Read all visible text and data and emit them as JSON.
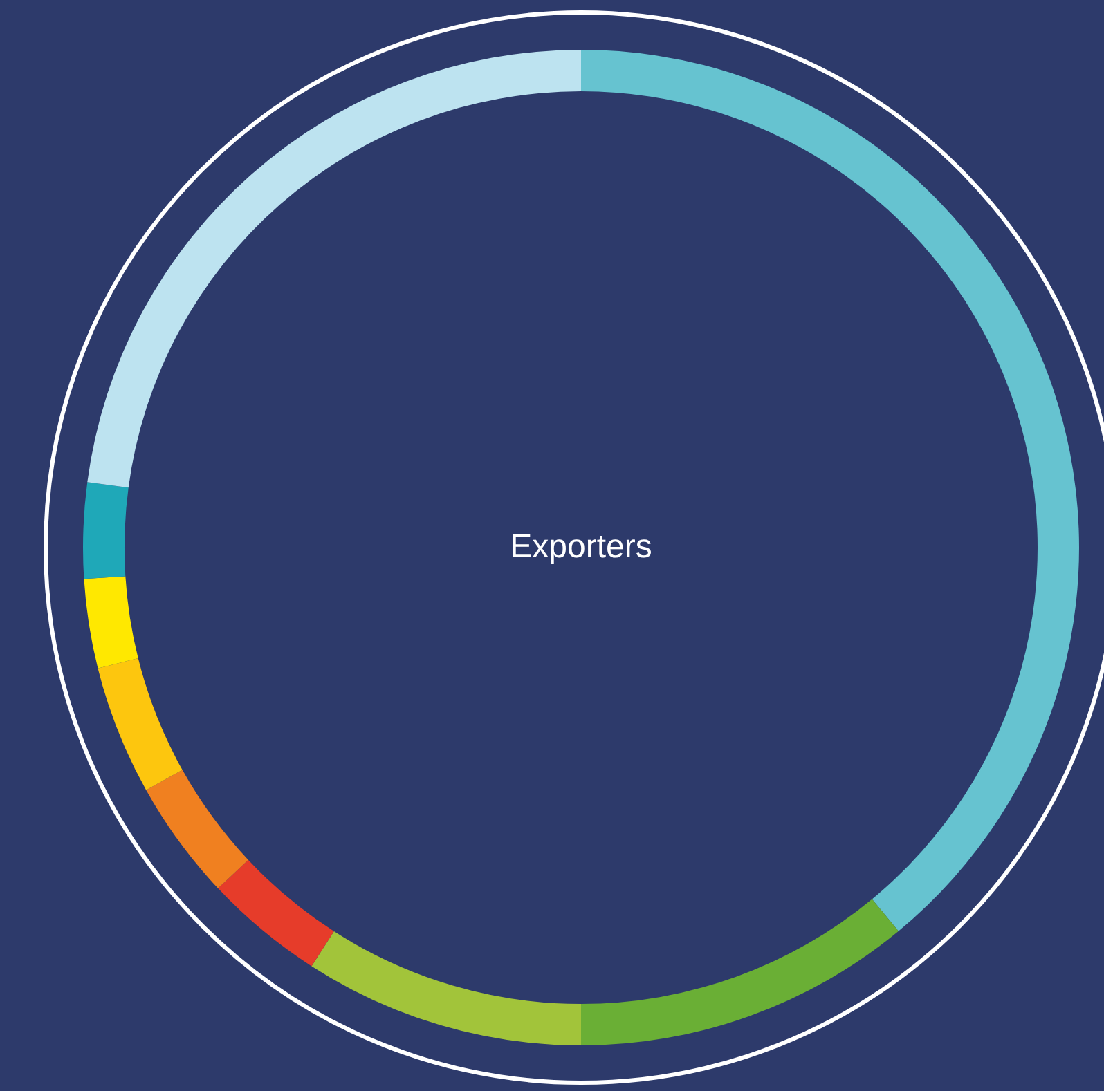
{
  "chart_data": {
    "type": "donut",
    "title": "Exporters",
    "categories": [
      null,
      null,
      null,
      null,
      null,
      null,
      null,
      null,
      null
    ],
    "values": [
      39.0,
      11.0,
      9.1,
      3.9,
      3.9,
      4.2,
      2.9,
      3.1,
      22.9
    ],
    "colors": [
      "#66c3d0",
      "#6aaf35",
      "#a2c43a",
      "#e63c2a",
      "#f08020",
      "#fdc60e",
      "#ffe800",
      "#1fa8b8",
      "#bde3f0"
    ]
  }
}
